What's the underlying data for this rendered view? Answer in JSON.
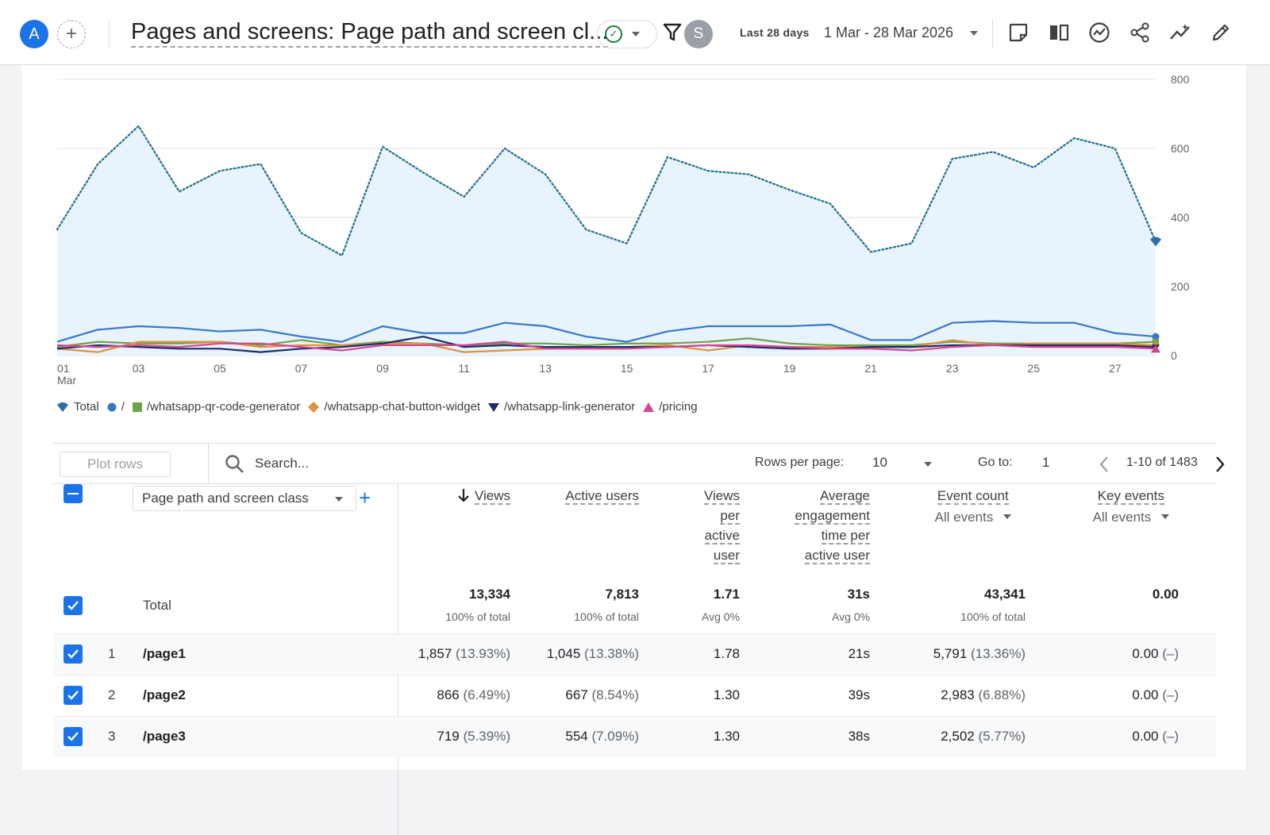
{
  "header": {
    "avatar_letter": "A",
    "title": "Pages and screens: Page path and screen cl...",
    "user_initial": "S",
    "date_label": "Last 28 days",
    "date_range": "1 Mar - 28 Mar 2026"
  },
  "icons": {
    "add": "+",
    "check": "✓"
  },
  "chart_data": {
    "type": "line",
    "x": [
      "01",
      "02",
      "03",
      "04",
      "05",
      "06",
      "07",
      "08",
      "09",
      "10",
      "11",
      "12",
      "13",
      "14",
      "15",
      "16",
      "17",
      "18",
      "19",
      "20",
      "21",
      "22",
      "23",
      "24",
      "25",
      "26",
      "27",
      "28"
    ],
    "x_tick_labels": [
      "01",
      "03",
      "05",
      "07",
      "09",
      "11",
      "13",
      "15",
      "17",
      "19",
      "21",
      "23",
      "25",
      "27"
    ],
    "x_sub_label": "Mar",
    "y_ticks": [
      "0",
      "200",
      "400",
      "600",
      "800"
    ],
    "ylim": [
      0,
      800
    ],
    "grid": true,
    "legend_position": "bottom-left",
    "series": [
      {
        "name": "Total",
        "color": "#1e6e8f",
        "style": "dotted-area",
        "values": [
          365,
          555,
          665,
          475,
          535,
          555,
          355,
          290,
          605,
          530,
          460,
          600,
          525,
          365,
          325,
          575,
          535,
          525,
          480,
          440,
          300,
          325,
          570,
          590,
          545,
          630,
          600,
          330
        ]
      },
      {
        "name": "/",
        "color": "#3a76c7",
        "style": "solid",
        "values": [
          40,
          75,
          85,
          80,
          70,
          75,
          55,
          40,
          85,
          65,
          65,
          95,
          85,
          55,
          40,
          70,
          85,
          85,
          85,
          90,
          45,
          45,
          95,
          100,
          95,
          95,
          65,
          55
        ]
      },
      {
        "name": "/whatsapp-qr-code-generator",
        "color": "#6fa34a",
        "style": "solid",
        "values": [
          25,
          40,
          35,
          35,
          40,
          30,
          45,
          30,
          40,
          35,
          30,
          35,
          35,
          30,
          35,
          35,
          40,
          50,
          35,
          30,
          30,
          30,
          40,
          35,
          35,
          35,
          35,
          40
        ]
      },
      {
        "name": "/whatsapp-chat-button-widget",
        "color": "#e0913a",
        "style": "solid",
        "values": [
          20,
          10,
          40,
          40,
          40,
          25,
          30,
          30,
          35,
          35,
          10,
          15,
          20,
          25,
          25,
          30,
          15,
          30,
          25,
          25,
          25,
          25,
          45,
          30,
          35,
          35,
          35,
          30
        ]
      },
      {
        "name": "/whatsapp-link-generator",
        "color": "#1f2a6b",
        "style": "solid",
        "values": [
          20,
          30,
          25,
          20,
          20,
          10,
          20,
          25,
          35,
          55,
          25,
          30,
          25,
          25,
          25,
          25,
          30,
          25,
          20,
          20,
          25,
          25,
          30,
          30,
          30,
          30,
          30,
          25
        ]
      },
      {
        "name": "/pricing",
        "color": "#d6478f",
        "style": "solid",
        "values": [
          30,
          25,
          30,
          25,
          35,
          35,
          25,
          15,
          30,
          30,
          30,
          40,
          20,
          20,
          20,
          25,
          30,
          30,
          25,
          20,
          20,
          15,
          25,
          30,
          25,
          25,
          25,
          20
        ]
      }
    ]
  },
  "toolbar": {
    "plot_rows": "Plot rows",
    "search_placeholder": "Search...",
    "rows_per_page_label": "Rows per page:",
    "rows_per_page_value": "10",
    "goto_label": "Go to:",
    "goto_value": "1",
    "pager_text": "1-10 of 1483"
  },
  "table": {
    "dimension": "Page path and screen class",
    "columns": {
      "views": "Views",
      "active_users": "Active users",
      "vpu_1": "Views",
      "vpu_2": "per",
      "vpu_3": "active",
      "vpu_4": "user",
      "aet_1": "Average",
      "aet_2": "engagement",
      "aet_3": "time per",
      "aet_4": "active user",
      "event_count": "Event count",
      "event_sub": "All events",
      "key_events": "Key events",
      "key_sub": "All events"
    },
    "total": {
      "label": "Total",
      "views": "13,334",
      "views_sub": "100% of total",
      "users": "7,813",
      "users_sub": "100% of total",
      "vpu": "1.71",
      "vpu_sub": "Avg 0%",
      "aet": "31s",
      "aet_sub": "Avg 0%",
      "events": "43,341",
      "events_sub": "100% of total",
      "key": "0.00"
    },
    "rows": [
      {
        "num": "1",
        "path": "/page1",
        "views": "1,857",
        "views_pct": "(13.93%)",
        "users": "1,045",
        "users_pct": "(13.38%)",
        "vpu": "1.78",
        "aet": "21s",
        "events": "5,791",
        "events_pct": "(13.36%)",
        "key": "0.00",
        "key_pct": "(–)"
      },
      {
        "num": "2",
        "path": "/page2",
        "views": "866",
        "views_pct": "(6.49%)",
        "users": "667",
        "users_pct": "(8.54%)",
        "vpu": "1.30",
        "aet": "39s",
        "events": "2,983",
        "events_pct": "(6.88%)",
        "key": "0.00",
        "key_pct": "(–)"
      },
      {
        "num": "3",
        "path": "/page3",
        "views": "719",
        "views_pct": "(5.39%)",
        "users": "554",
        "users_pct": "(7.09%)",
        "vpu": "1.30",
        "aet": "38s",
        "events": "2,502",
        "events_pct": "(5.77%)",
        "key": "0.00",
        "key_pct": "(–)"
      }
    ]
  }
}
